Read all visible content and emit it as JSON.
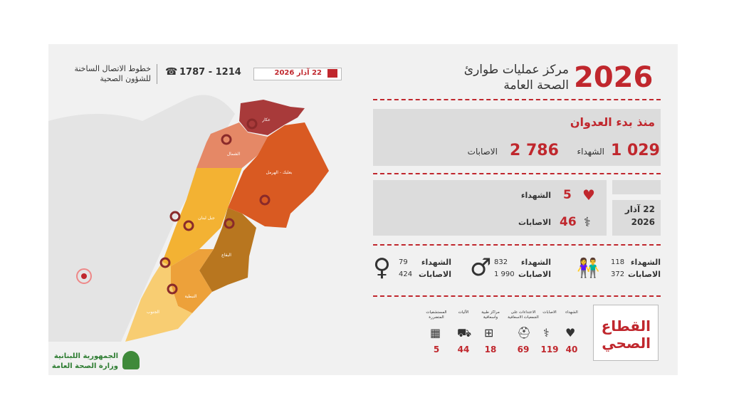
{
  "header": {
    "year": "2026",
    "title_line1": "مركز عمليات طوارئ",
    "title_line2": "الصحة العامة",
    "date": "22 آذار 2026",
    "hotline_number": "1787 - 1214",
    "hotline_label_line1": "خطوط الاتصال الساخنة",
    "hotline_label_line2": "للشؤون الصحية"
  },
  "since_start": {
    "title": "منذ بدء العدوان",
    "killed": "1 029",
    "killed_label": "الشهداء",
    "injured": "2 786",
    "injured_label": "الاصابات"
  },
  "daily": {
    "date_line1": "22 آذار",
    "date_line2": "2026",
    "killed": 5,
    "killed_label": "الشهداء",
    "injured": 46,
    "injured_label": "الاصابات"
  },
  "demographics": [
    {
      "killed": 79,
      "injured": 424,
      "killed_label": "الشهداء",
      "injured_label": "الاصابات"
    },
    {
      "killed": 832,
      "injured": "1 990",
      "killed_label": "الشهداء",
      "injured_label": "الاصابات"
    },
    {
      "killed": 118,
      "injured": 372,
      "killed_label": "الشهداء",
      "injured_label": "الاصابات"
    }
  ],
  "health_sector": {
    "title_line1": "القطاع",
    "title_line2": "الصحي",
    "items": [
      {
        "label": "الشهداء",
        "value": 40
      },
      {
        "label": "الاصابات",
        "value": 119
      },
      {
        "label": "الاعتداءات على الجمعيات الاسعافية",
        "value": 69
      },
      {
        "label": "مراكز طبية واسعافية",
        "value": 18
      },
      {
        "label": "الآليات",
        "value": 44
      },
      {
        "label": "المستشفيات المتضررة",
        "value": 5
      }
    ]
  },
  "map": {
    "regions": [
      "عكار",
      "الشمال",
      "بعلبك - الهرمل",
      "جبل لبنان",
      "البقاع",
      "النبطية",
      "الجنوب"
    ]
  },
  "footer": {
    "line1": "الجمهورية اللبنانية",
    "line2": "وزارة الصحة العامة"
  }
}
